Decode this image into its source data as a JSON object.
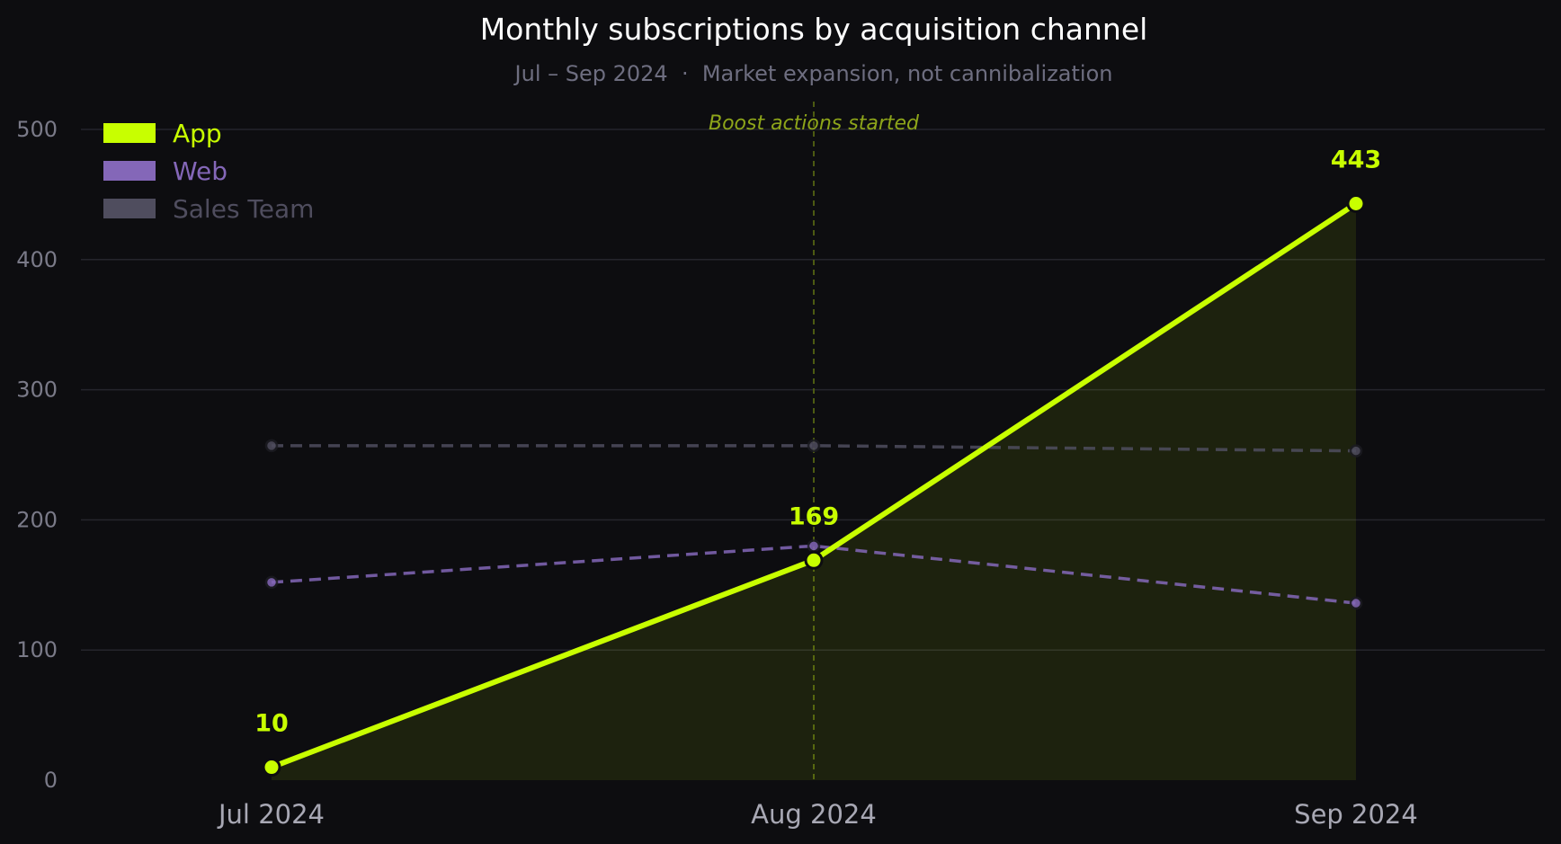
{
  "chart_data": {
    "type": "line",
    "title": "Monthly subscriptions by acquisition channel",
    "subtitle": "Jul – Sep 2024  ·  Market expansion, not cannibalization",
    "categories": [
      "Jul 2024",
      "Aug 2024",
      "Sep 2024"
    ],
    "ylim": [
      0,
      520
    ],
    "yticks": [
      0,
      100,
      200,
      300,
      400,
      500
    ],
    "grid": true,
    "legend_position": "top-left",
    "series": [
      {
        "name": "App",
        "values": [
          10,
          169,
          443
        ],
        "color": "#c8ff00",
        "style": "solid",
        "area": true,
        "data_labels": [
          "10",
          "169",
          "443"
        ]
      },
      {
        "name": "Web",
        "values": [
          152,
          180,
          136
        ],
        "color": "#8467b8",
        "style": "dashed"
      },
      {
        "name": "Sales Team",
        "values": [
          257,
          257,
          253
        ],
        "color": "#4f4d5e",
        "style": "dashed"
      }
    ],
    "annotations": [
      {
        "category": "Aug 2024",
        "text": "Boost actions started"
      }
    ]
  }
}
